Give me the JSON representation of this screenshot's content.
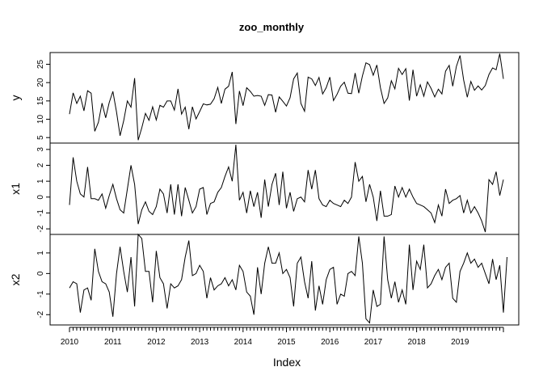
{
  "chart_data": {
    "type": "line",
    "title": "zoo_monthly",
    "xlabel": "Index",
    "start": "2010-01",
    "frequency": "monthly",
    "x_tick_labels": [
      "2010",
      "2011",
      "2012",
      "2013",
      "2014",
      "2015",
      "2016",
      "2017",
      "2018",
      "2019"
    ],
    "xlim": [
      "2010-01",
      "2019-12"
    ],
    "series": [
      {
        "name": "y",
        "ylim": [
          3.5,
          28.2
        ],
        "y_ticks": [
          5,
          10,
          15,
          20,
          25
        ],
        "values": [
          11.4,
          17.2,
          14.3,
          16.3,
          12.3,
          17.8,
          17.1,
          6.7,
          9.2,
          14.4,
          10.4,
          14.6,
          17.6,
          12.0,
          5.5,
          9.6,
          15.0,
          13.3,
          21.2,
          4.3,
          7.7,
          11.6,
          9.7,
          13.4,
          9.8,
          13.8,
          13.3,
          15.0,
          15.0,
          12.5,
          18.3,
          11.4,
          13.3,
          7.3,
          13.4,
          10.1,
          12.1,
          14.2,
          13.9,
          14.1,
          15.6,
          18.7,
          14.3,
          18.2,
          19.0,
          22.9,
          8.7,
          17.7,
          13.7,
          18.6,
          17.6,
          16.3,
          16.5,
          16.3,
          13.8,
          16.7,
          16.6,
          11.9,
          16.1,
          14.9,
          13.6,
          15.9,
          21.0,
          22.6,
          14.3,
          12.2,
          21.5,
          21.0,
          19.2,
          21.4,
          16.9,
          18.6,
          21.5,
          15.1,
          16.8,
          19.0,
          20.1,
          17.1,
          17.0,
          22.6,
          17.1,
          21.8,
          25.4,
          24.9,
          22.0,
          24.8,
          18.6,
          14.3,
          15.8,
          20.5,
          18.3,
          23.9,
          22.2,
          23.8,
          15.1,
          23.5,
          16.3,
          19.4,
          16.3,
          20.2,
          18.4,
          16.1,
          18.2,
          16.9,
          23.1,
          24.7,
          19.0,
          24.4,
          27.4,
          20.7,
          16.0,
          20.3,
          17.9,
          19.1,
          18.0,
          19.2,
          22.2,
          24.0,
          23.5,
          27.9,
          21.0
        ]
      },
      {
        "name": "x1",
        "ylim": [
          -2.35,
          3.4
        ],
        "y_ticks": [
          -2,
          -1,
          0,
          1,
          2,
          3
        ],
        "values": [
          -0.5,
          2.5,
          1.0,
          0.2,
          0.0,
          1.9,
          -0.1,
          -0.1,
          -0.2,
          0.2,
          -0.7,
          0.1,
          0.8,
          -0.1,
          -0.8,
          -1.0,
          0.5,
          2.0,
          0.8,
          -1.7,
          -0.8,
          -0.3,
          -0.9,
          -1.1,
          -0.6,
          0.5,
          0.2,
          -1.0,
          0.8,
          -1.1,
          0.8,
          -1.2,
          0.6,
          -0.2,
          -1.0,
          -0.6,
          0.5,
          0.6,
          -1.1,
          -0.4,
          -0.3,
          0.3,
          0.6,
          1.3,
          1.9,
          1.0,
          3.3,
          -0.2,
          0.3,
          -1.0,
          0.4,
          -0.6,
          0.3,
          -1.3,
          1.1,
          -0.6,
          0.8,
          1.5,
          -0.5,
          1.6,
          -0.7,
          0.3,
          -0.9,
          -0.1,
          0.0,
          -0.3,
          1.7,
          0.5,
          1.7,
          -0.1,
          -0.5,
          -0.6,
          -0.2,
          -0.4,
          -0.5,
          -0.6,
          -0.2,
          -0.4,
          0.0,
          2.2,
          1.0,
          1.3,
          -0.3,
          0.8,
          0.0,
          -1.5,
          0.4,
          -1.2,
          -1.2,
          -1.1,
          0.7,
          0.0,
          0.6,
          0.0,
          0.5,
          0.0,
          -0.4,
          -0.5,
          -0.6,
          -0.8,
          -1.0,
          -1.6,
          -0.5,
          -1.2,
          0.5,
          -0.4,
          -0.2,
          -0.1,
          0.1,
          -1.0,
          -0.2,
          -1.0,
          -0.6,
          -1.0,
          -1.5,
          -2.2,
          1.1,
          0.8,
          1.6,
          0.1,
          1.1
        ]
      },
      {
        "name": "x2",
        "ylim": [
          -2.5,
          1.9
        ],
        "y_ticks": [
          -2,
          -1,
          0,
          1
        ],
        "values": [
          -0.7,
          -0.4,
          -0.5,
          -1.9,
          -0.8,
          -0.7,
          -1.3,
          1.2,
          0.1,
          -0.4,
          -0.5,
          -0.9,
          -2.1,
          0.0,
          1.3,
          0.1,
          -0.9,
          0.8,
          -1.6,
          1.9,
          1.7,
          0.1,
          0.1,
          -1.4,
          1.1,
          -0.2,
          -0.5,
          -1.7,
          -0.5,
          -0.7,
          -0.6,
          -0.3,
          0.8,
          1.6,
          -0.1,
          0.0,
          0.4,
          0.1,
          -1.2,
          -0.2,
          -0.8,
          -0.6,
          -0.5,
          -0.2,
          -0.6,
          -0.3,
          -0.8,
          0.4,
          0.1,
          -0.9,
          -1.1,
          -2.0,
          0.3,
          -1.0,
          0.5,
          1.3,
          0.5,
          0.5,
          1.0,
          0.0,
          0.2,
          -0.2,
          -1.6,
          0.5,
          0.8,
          -0.4,
          -1.2,
          0.6,
          -1.8,
          -0.6,
          -1.5,
          -0.3,
          0.2,
          0.3,
          -1.5,
          -1.0,
          -1.1,
          0.0,
          0.1,
          -0.1,
          1.8,
          0.5,
          -2.2,
          -2.4,
          -0.8,
          -1.6,
          -1.5,
          1.8,
          -0.3,
          -1.2,
          -0.4,
          -1.4,
          -0.8,
          -1.5,
          1.4,
          -0.8,
          0.6,
          0.2,
          1.4,
          -0.7,
          -0.5,
          -0.1,
          0.2,
          -0.3,
          0.3,
          0.5,
          -1.2,
          -1.4,
          0.1,
          0.5,
          1.0,
          0.5,
          0.7,
          0.3,
          0.5,
          0.0,
          -0.5,
          0.7,
          -0.3,
          0.4,
          -1.9,
          0.8
        ]
      }
    ]
  }
}
